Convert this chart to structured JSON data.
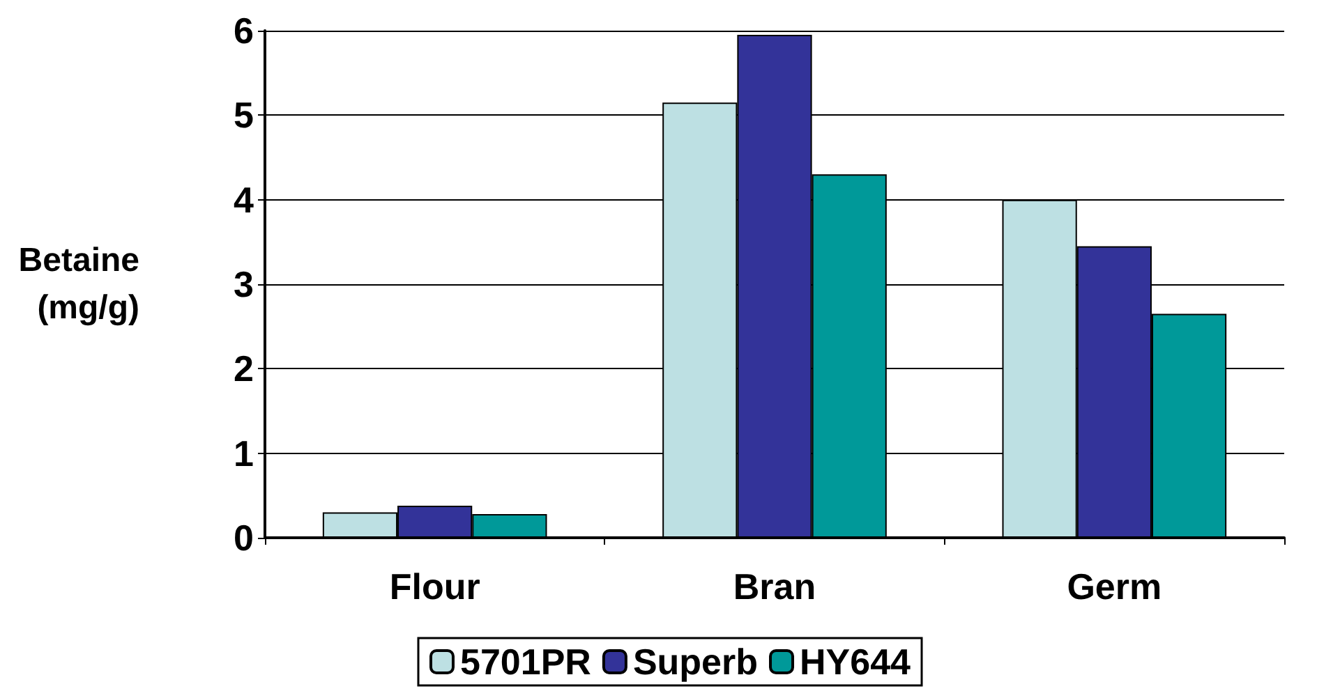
{
  "chart_data": {
    "type": "bar",
    "ylabel": "Betaine\n(mg/g)",
    "categories": [
      "Flour",
      "Bran",
      "Germ"
    ],
    "series": [
      {
        "name": "5701PR",
        "color": "#bde0e3",
        "values": [
          0.3,
          5.15,
          4.0
        ]
      },
      {
        "name": "Superb",
        "color": "#333399",
        "values": [
          0.38,
          5.95,
          3.45
        ]
      },
      {
        "name": "HY644",
        "color": "#009999",
        "values": [
          0.28,
          4.3,
          2.65
        ]
      }
    ],
    "ylim": [
      0,
      6
    ],
    "yticks": [
      0,
      1,
      2,
      3,
      4,
      5,
      6
    ],
    "grid": "y",
    "legend": "bottom"
  }
}
